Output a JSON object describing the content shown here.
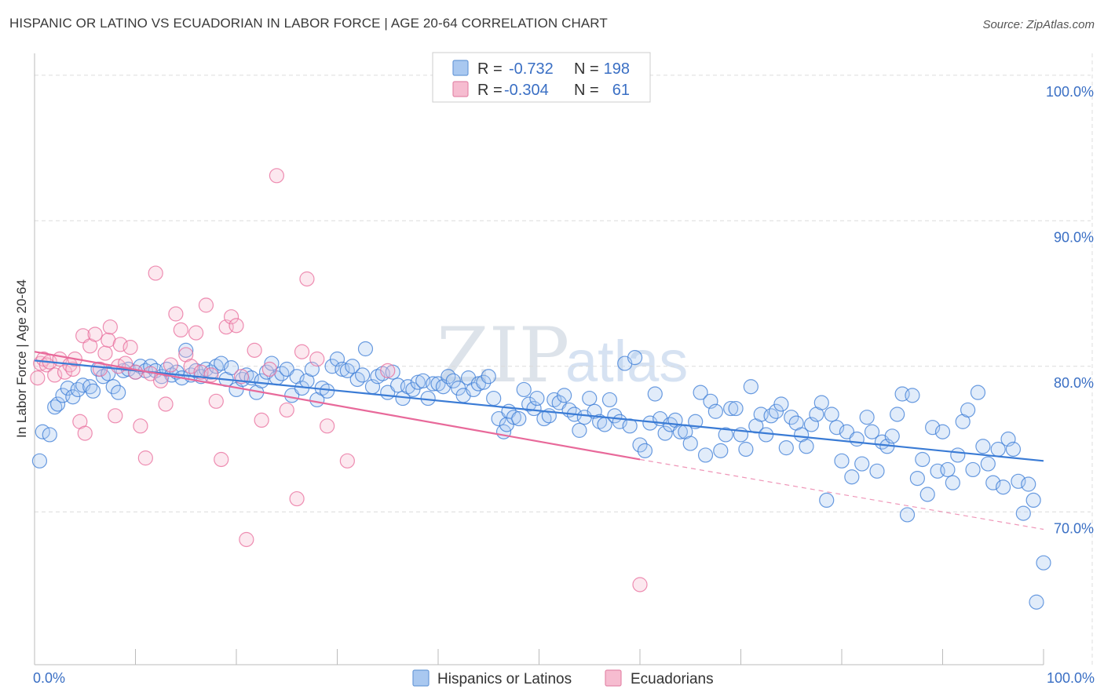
{
  "title": "HISPANIC OR LATINO VS ECUADORIAN IN LABOR FORCE | AGE 20-64 CORRELATION CHART",
  "source": "Source: ZipAtlas.com",
  "watermark": {
    "part1": "ZIP",
    "part2": "atlas"
  },
  "colors": {
    "blue": "#3a7bd5",
    "blue_fill": "#a9c8f0",
    "pink": "#e8699a",
    "pink_fill": "#f6bcd0",
    "tick_text": "#3a6fc4",
    "grid": "#dcdcdc"
  },
  "legend": {
    "rows": [
      {
        "r_label": "R =",
        "r_value": "-0.732",
        "n_label": "N =",
        "n_value": "198"
      },
      {
        "r_label": "R =",
        "r_value": "-0.304",
        "n_label": "N =",
        "n_value": "61"
      }
    ]
  },
  "bottom_legend": [
    "Hispanics or Latinos",
    "Ecuadorians"
  ],
  "chart_data": {
    "type": "scatter",
    "title": "HISPANIC OR LATINO VS ECUADORIAN IN LABOR FORCE | AGE 20-64 CORRELATION CHART",
    "xlabel": "",
    "ylabel": "In Labor Force | Age 20-64",
    "xlim": [
      0,
      100
    ],
    "ylim": [
      59.5,
      101.5
    ],
    "x_tick_labels": [
      "0.0%",
      "100.0%"
    ],
    "y_ticks": [
      70,
      80,
      90,
      100
    ],
    "y_tick_labels": [
      "70.0%",
      "80.0%",
      "90.0%",
      "100.0%"
    ],
    "grid": true,
    "legend_position": "top-center",
    "series": [
      {
        "name": "Hispanics or Latinos",
        "r": -0.732,
        "n": 198,
        "trend": {
          "x0": 0,
          "y0": 80.4,
          "x1": 100,
          "y1": 73.5
        },
        "points": [
          [
            0.5,
            73.5
          ],
          [
            0.8,
            75.5
          ],
          [
            1.5,
            75.3
          ],
          [
            2,
            77.2
          ],
          [
            2.3,
            77.4
          ],
          [
            2.8,
            78
          ],
          [
            3.3,
            78.5
          ],
          [
            3.8,
            77.9
          ],
          [
            4.3,
            78.4
          ],
          [
            4.8,
            78.7
          ],
          [
            5.5,
            78.6
          ],
          [
            5.8,
            78.3
          ],
          [
            6.3,
            79.8
          ],
          [
            6.8,
            79.3
          ],
          [
            7.3,
            79.5
          ],
          [
            7.8,
            78.6
          ],
          [
            8.3,
            78.2
          ],
          [
            8.8,
            79.7
          ],
          [
            9.3,
            79.8
          ],
          [
            10,
            79.6
          ],
          [
            10.5,
            80
          ],
          [
            11,
            79.7
          ],
          [
            11.5,
            80
          ],
          [
            12,
            79.7
          ],
          [
            12.6,
            79.3
          ],
          [
            13.1,
            79.8
          ],
          [
            13.6,
            79.4
          ],
          [
            14.1,
            79.6
          ],
          [
            14.6,
            79.2
          ],
          [
            15,
            81.1
          ],
          [
            15.5,
            79.4
          ],
          [
            16,
            79.7
          ],
          [
            16.5,
            79.3
          ],
          [
            17,
            79.8
          ],
          [
            17.5,
            79.6
          ],
          [
            18,
            80
          ],
          [
            18.5,
            80.2
          ],
          [
            19,
            79.1
          ],
          [
            19.5,
            79.9
          ],
          [
            20,
            78.4
          ],
          [
            20.6,
            79.1
          ],
          [
            21,
            79.4
          ],
          [
            21.5,
            79.2
          ],
          [
            22,
            78.2
          ],
          [
            22.5,
            79
          ],
          [
            23,
            79.6
          ],
          [
            23.5,
            80.2
          ],
          [
            24,
            79.2
          ],
          [
            24.5,
            79.5
          ],
          [
            25,
            79.8
          ],
          [
            25.5,
            78
          ],
          [
            26,
            79.3
          ],
          [
            26.5,
            78.5
          ],
          [
            27,
            79
          ],
          [
            27.5,
            79.8
          ],
          [
            28,
            77.7
          ],
          [
            28.5,
            78.5
          ],
          [
            29,
            78.3
          ],
          [
            29.5,
            80
          ],
          [
            30,
            80.5
          ],
          [
            30.5,
            79.8
          ],
          [
            31,
            79.7
          ],
          [
            31.5,
            80
          ],
          [
            32,
            79.1
          ],
          [
            32.5,
            79.4
          ],
          [
            32.8,
            81.2
          ],
          [
            33.5,
            78.6
          ],
          [
            34,
            79.3
          ],
          [
            34.5,
            79.5
          ],
          [
            35,
            78.2
          ],
          [
            35.5,
            79.6
          ],
          [
            36,
            78.7
          ],
          [
            36.5,
            77.8
          ],
          [
            37,
            78.6
          ],
          [
            37.5,
            78.4
          ],
          [
            38,
            78.9
          ],
          [
            38.5,
            79
          ],
          [
            39,
            77.8
          ],
          [
            39.5,
            78.8
          ],
          [
            40,
            78.8
          ],
          [
            40.5,
            78.6
          ],
          [
            41,
            79.3
          ],
          [
            41.5,
            79
          ],
          [
            42,
            78.5
          ],
          [
            42.5,
            78
          ],
          [
            43,
            79.2
          ],
          [
            43.5,
            78.4
          ],
          [
            44,
            78.8
          ],
          [
            44.5,
            78.9
          ],
          [
            45,
            79.3
          ],
          [
            45.5,
            77.8
          ],
          [
            46,
            76.4
          ],
          [
            46.5,
            75.5
          ],
          [
            46.8,
            76
          ],
          [
            47,
            76.9
          ],
          [
            47.5,
            76.5
          ],
          [
            48,
            76.4
          ],
          [
            48.5,
            78.4
          ],
          [
            49,
            77.4
          ],
          [
            49.5,
            77.1
          ],
          [
            49.8,
            77.8
          ],
          [
            50.5,
            76.4
          ],
          [
            51,
            76.6
          ],
          [
            51.5,
            77.7
          ],
          [
            52,
            77.5
          ],
          [
            52.5,
            78
          ],
          [
            53,
            77
          ],
          [
            53.5,
            76.7
          ],
          [
            54,
            75.6
          ],
          [
            54.5,
            76.5
          ],
          [
            55,
            77.8
          ],
          [
            55.5,
            76.9
          ],
          [
            56,
            76.2
          ],
          [
            56.5,
            76
          ],
          [
            57,
            77.7
          ],
          [
            57.5,
            76.6
          ],
          [
            58,
            76.2
          ],
          [
            58.5,
            80.2
          ],
          [
            59,
            75.9
          ],
          [
            59.5,
            80.6
          ],
          [
            60,
            74.6
          ],
          [
            60.5,
            74.2
          ],
          [
            61,
            76.1
          ],
          [
            61.5,
            78.1
          ],
          [
            62,
            76.4
          ],
          [
            62.5,
            75.4
          ],
          [
            63,
            76
          ],
          [
            63.5,
            76.3
          ],
          [
            64,
            75.5
          ],
          [
            64.5,
            75.5
          ],
          [
            65,
            74.7
          ],
          [
            65.5,
            76.2
          ],
          [
            66,
            78.2
          ],
          [
            66.5,
            73.9
          ],
          [
            67,
            77.6
          ],
          [
            67.5,
            76.9
          ],
          [
            68,
            74.2
          ],
          [
            68.5,
            75.3
          ],
          [
            69,
            77.1
          ],
          [
            69.5,
            77.1
          ],
          [
            70,
            75.3
          ],
          [
            70.5,
            74.3
          ],
          [
            71,
            78.6
          ],
          [
            71.5,
            75.9
          ],
          [
            72,
            76.7
          ],
          [
            72.5,
            75.3
          ],
          [
            73,
            76.6
          ],
          [
            73.5,
            76.9
          ],
          [
            74,
            77.4
          ],
          [
            74.5,
            74.4
          ],
          [
            75,
            76.5
          ],
          [
            75.5,
            76.1
          ],
          [
            76,
            75.3
          ],
          [
            76.5,
            74.5
          ],
          [
            77,
            76
          ],
          [
            77.5,
            76.7
          ],
          [
            78,
            77.5
          ],
          [
            78.5,
            70.8
          ],
          [
            79,
            76.7
          ],
          [
            79.5,
            75.8
          ],
          [
            80,
            73.5
          ],
          [
            80.5,
            75.5
          ],
          [
            81,
            72.4
          ],
          [
            81.5,
            75
          ],
          [
            82,
            73.3
          ],
          [
            82.5,
            76.5
          ],
          [
            83,
            75.5
          ],
          [
            83.5,
            72.8
          ],
          [
            84,
            74.8
          ],
          [
            84.5,
            74.5
          ],
          [
            85,
            75.2
          ],
          [
            85.5,
            76.7
          ],
          [
            86,
            78.1
          ],
          [
            86.5,
            69.8
          ],
          [
            87,
            78
          ],
          [
            87.5,
            72.3
          ],
          [
            88,
            73.6
          ],
          [
            88.5,
            71.2
          ],
          [
            89,
            75.8
          ],
          [
            89.5,
            72.8
          ],
          [
            90,
            75.5
          ],
          [
            90.5,
            72.9
          ],
          [
            91,
            72
          ],
          [
            91.5,
            73.9
          ],
          [
            92,
            76.2
          ],
          [
            92.5,
            77
          ],
          [
            93,
            72.9
          ],
          [
            93.5,
            78.2
          ],
          [
            94,
            74.5
          ],
          [
            94.5,
            73.3
          ],
          [
            95,
            72
          ],
          [
            95.5,
            74.3
          ],
          [
            96,
            71.7
          ],
          [
            96.5,
            75
          ],
          [
            97,
            74.3
          ],
          [
            97.5,
            72.1
          ],
          [
            98,
            69.9
          ],
          [
            98.5,
            71.9
          ],
          [
            99,
            70.8
          ],
          [
            100,
            66.5
          ],
          [
            99.3,
            63.8
          ]
        ]
      },
      {
        "name": "Ecuadorians",
        "r": -0.304,
        "n": 61,
        "trend": {
          "x0": 0,
          "y0": 81,
          "x1": 60,
          "y1": 73.6
        },
        "trend_dashed": {
          "x0": 60,
          "y0": 73.6,
          "x1": 100,
          "y1": 68.8
        },
        "points": [
          [
            0.3,
            79.2
          ],
          [
            0.6,
            80.2
          ],
          [
            0.9,
            80.5
          ],
          [
            1.2,
            80.1
          ],
          [
            1.5,
            80.3
          ],
          [
            2,
            79.4
          ],
          [
            2.5,
            80.5
          ],
          [
            3,
            79.6
          ],
          [
            3.5,
            80.1
          ],
          [
            3.8,
            79.8
          ],
          [
            4,
            80.5
          ],
          [
            4.5,
            76.2
          ],
          [
            4.8,
            82.1
          ],
          [
            5,
            75.4
          ],
          [
            5.5,
            81.4
          ],
          [
            6,
            82.2
          ],
          [
            6.5,
            79.8
          ],
          [
            7,
            80.9
          ],
          [
            7.3,
            81.8
          ],
          [
            7.5,
            82.7
          ],
          [
            8,
            76.6
          ],
          [
            8.3,
            80
          ],
          [
            8.5,
            81.5
          ],
          [
            9,
            80.2
          ],
          [
            9.5,
            81.3
          ],
          [
            10,
            79.6
          ],
          [
            10.5,
            75.9
          ],
          [
            11,
            73.7
          ],
          [
            11.5,
            79.5
          ],
          [
            12,
            86.4
          ],
          [
            12.5,
            79
          ],
          [
            13,
            77.4
          ],
          [
            13.5,
            80.1
          ],
          [
            14,
            83.6
          ],
          [
            14.5,
            82.5
          ],
          [
            15,
            80.8
          ],
          [
            15.5,
            80
          ],
          [
            16,
            82.3
          ],
          [
            16.5,
            79.6
          ],
          [
            17,
            84.2
          ],
          [
            17.5,
            79.4
          ],
          [
            18,
            77.6
          ],
          [
            18.5,
            73.6
          ],
          [
            19,
            82.7
          ],
          [
            19.5,
            83.4
          ],
          [
            20,
            82.8
          ],
          [
            20.5,
            79.3
          ],
          [
            21,
            68.1
          ],
          [
            21.8,
            81.1
          ],
          [
            22.5,
            76.3
          ],
          [
            23.3,
            79.8
          ],
          [
            24,
            93.1
          ],
          [
            25,
            77
          ],
          [
            26,
            70.9
          ],
          [
            26.5,
            81
          ],
          [
            27,
            86
          ],
          [
            28,
            80.5
          ],
          [
            29,
            75.9
          ],
          [
            31,
            73.5
          ],
          [
            35,
            79.7
          ],
          [
            60,
            65
          ]
        ]
      }
    ]
  }
}
